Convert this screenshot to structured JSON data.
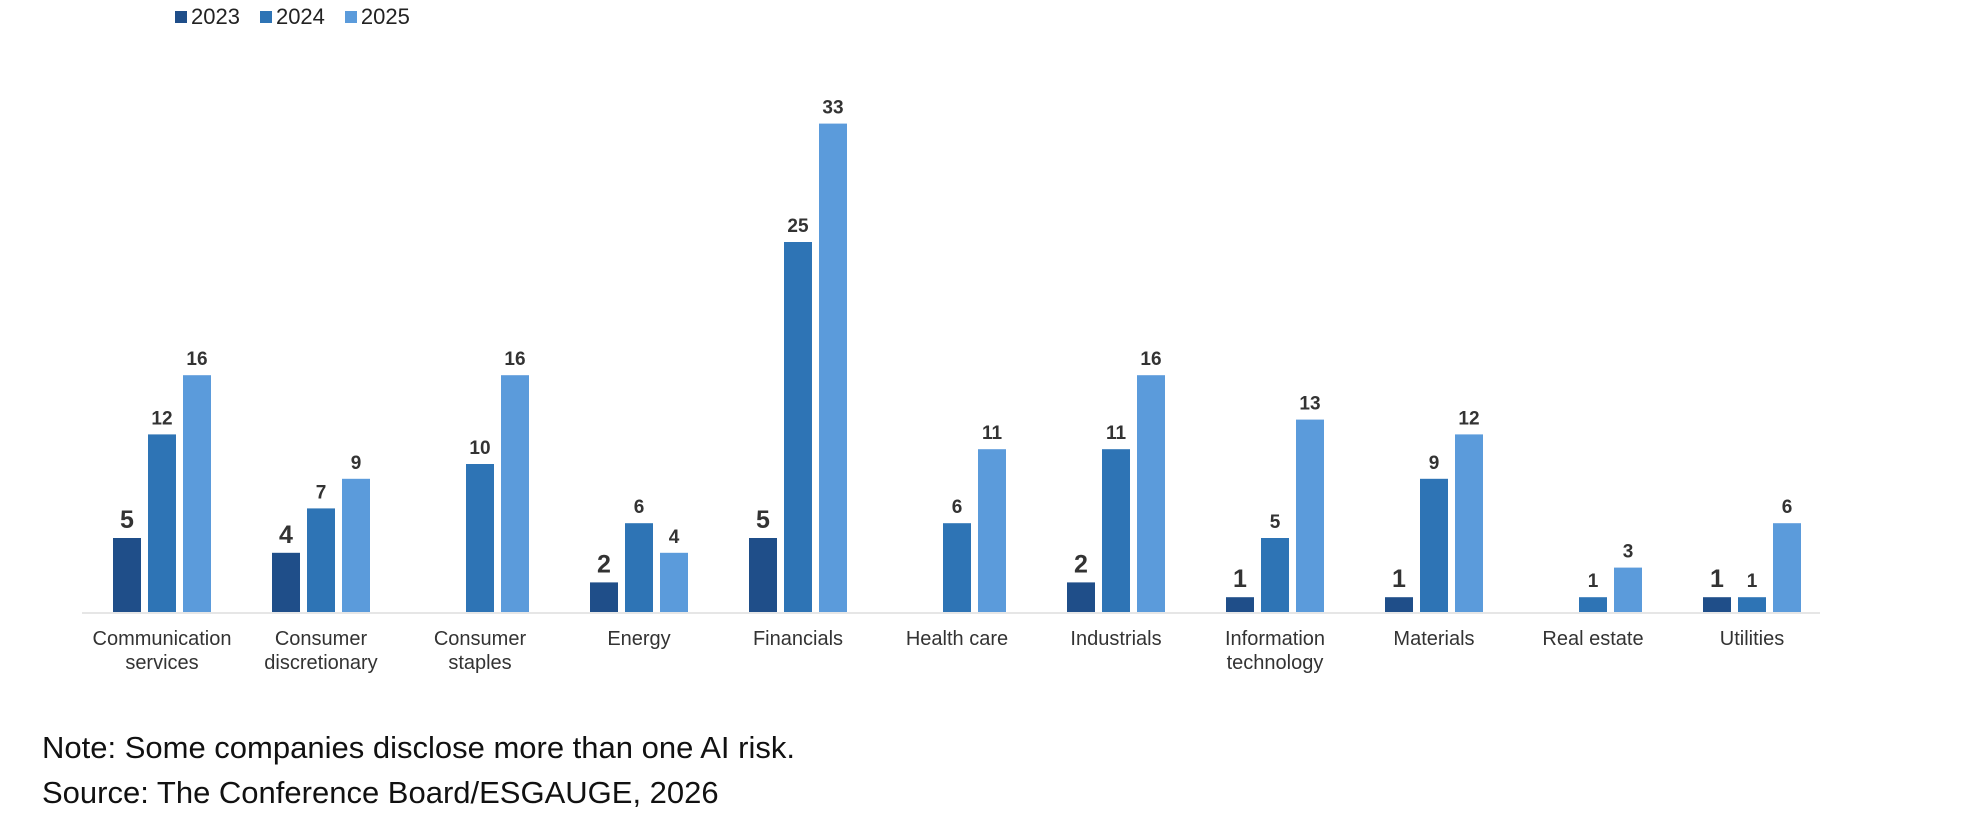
{
  "chart_data": {
    "type": "bar",
    "title": "",
    "xlabel": "",
    "ylabel": "",
    "ylim": [
      0,
      33
    ],
    "grid": false,
    "legend_position": "top-left",
    "categories": [
      [
        "Communication",
        "services"
      ],
      [
        "Consumer",
        "discretionary"
      ],
      [
        "Consumer",
        "staples"
      ],
      [
        "Energy"
      ],
      [
        "Financials"
      ],
      [
        "Health care"
      ],
      [
        "Industrials"
      ],
      [
        "Information",
        "technology"
      ],
      [
        "Materials"
      ],
      [
        "Real estate"
      ],
      [
        "Utilities"
      ]
    ],
    "series": [
      {
        "name": "2023",
        "color": "#1f4e89",
        "values": [
          5,
          4,
          null,
          2,
          5,
          null,
          2,
          1,
          1,
          null,
          1
        ]
      },
      {
        "name": "2024",
        "color": "#2e74b5",
        "values": [
          12,
          7,
          10,
          6,
          25,
          6,
          11,
          5,
          9,
          1,
          1
        ]
      },
      {
        "name": "2025",
        "color": "#5b9bdb",
        "values": [
          16,
          9,
          16,
          4,
          33,
          11,
          16,
          13,
          12,
          3,
          6
        ]
      }
    ]
  },
  "notes": {
    "note": "Note: Some companies disclose more than one AI risk.",
    "source": "Source: The Conference Board/ESGAUGE, 2026"
  }
}
